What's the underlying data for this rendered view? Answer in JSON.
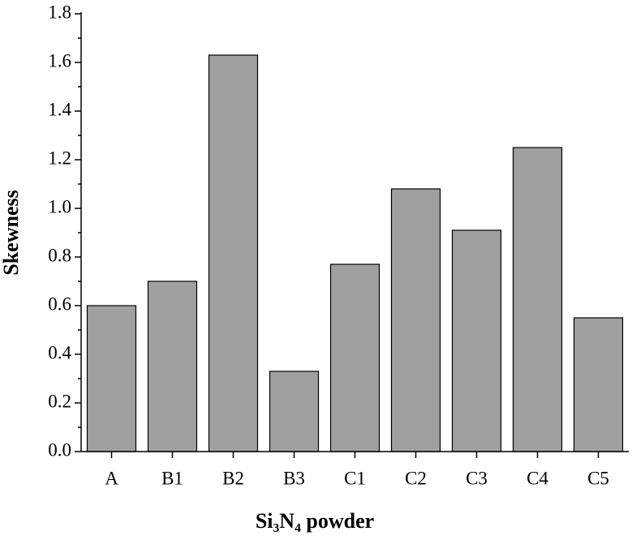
{
  "chart_data": {
    "type": "bar",
    "x_label": "Si₃N₄ powder",
    "y_label": "Skewness",
    "categories": [
      "A",
      "B1",
      "B2",
      "B3",
      "C1",
      "C2",
      "C3",
      "C4",
      "C5"
    ],
    "values": [
      0.6,
      0.7,
      1.63,
      0.33,
      0.77,
      1.08,
      0.91,
      1.25,
      0.55
    ],
    "color": "#a0a0a0",
    "ylim": [
      0,
      1.8
    ],
    "yticks": [
      {
        "value": 0,
        "label": "0.0"
      },
      0.2,
      0.4,
      0.6,
      0.8,
      {
        "value": 1,
        "label": "1.0"
      },
      1.2,
      1.4,
      1.6,
      1.8
    ],
    "grid": false
  }
}
